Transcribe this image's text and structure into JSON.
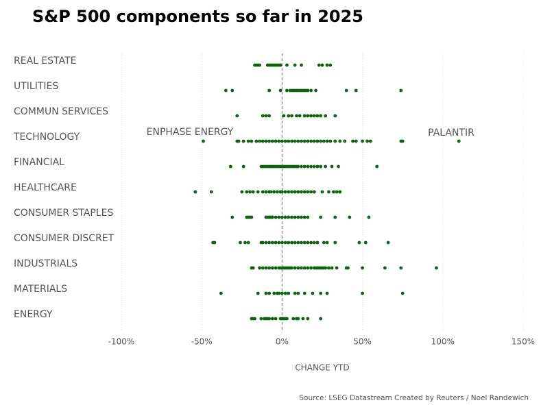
{
  "chart_data": {
    "type": "strip",
    "title": "S&P 500 components so far in 2025",
    "x_label": "CHANGE YTD",
    "source": "Source: LSEG Datastream  Created by Reuters / Noel Randewich",
    "annotations": [
      "ENPHASE ENERGY",
      "PALANTIR"
    ],
    "color": "#0b650b",
    "grid": true,
    "xlim": [
      -100,
      150
    ],
    "xticks": [
      {
        "value": -100,
        "label": "-100%"
      },
      {
        "value": -50,
        "label": "-50%"
      },
      {
        "value": 0,
        "label": "0%"
      },
      {
        "value": 50,
        "label": "50%"
      },
      {
        "value": 100,
        "label": "100%"
      },
      {
        "value": 150,
        "label": "150%"
      }
    ],
    "categories": [
      "REAL ESTATE",
      "UTILITIES",
      "COMMUN SERVICES",
      "TECHNOLOGY",
      "FINANCIAL",
      "HEALTHCARE",
      "CONSUMER STAPLES",
      "CONSUMER DISCRET",
      "INDUSTRIALS",
      "MATERIALS",
      "ENERGY"
    ],
    "values": [
      [
        -17,
        -16,
        -15,
        -14,
        -9,
        -8,
        -7,
        -6,
        -5,
        -4,
        -3,
        -2,
        -1,
        3,
        8,
        12,
        23,
        25,
        28,
        30
      ],
      [
        -35,
        -31,
        -8,
        -1,
        3,
        5,
        6,
        7,
        8,
        9,
        10,
        11,
        12,
        13,
        14,
        15,
        16,
        18,
        21,
        40,
        46,
        74
      ],
      [
        -28,
        -12,
        -10,
        -8,
        1,
        4,
        6,
        9,
        11,
        14,
        16,
        18,
        20,
        22,
        24,
        27,
        33
      ],
      [
        -49,
        -28,
        -27,
        -24,
        -21,
        -19,
        -16,
        -14,
        -12,
        -10,
        -8,
        -6,
        -4,
        -2,
        0,
        2,
        4,
        6,
        8,
        10,
        12,
        14,
        16,
        18,
        20,
        22,
        24,
        26,
        28,
        30,
        33,
        36,
        39,
        44,
        46,
        50,
        53,
        55,
        74,
        75,
        110
      ],
      [
        -32,
        -24,
        -13,
        -12,
        -11,
        -10,
        -9,
        -8,
        -7,
        -6,
        -5,
        -4,
        -3,
        -2,
        -1,
        0,
        1,
        2,
        3,
        4,
        5,
        6,
        7,
        8,
        9,
        10,
        12,
        14,
        16,
        18,
        20,
        22,
        24,
        27,
        31,
        35,
        59
      ],
      [
        -54,
        -44,
        -25,
        -22,
        -20,
        -18,
        -15,
        -12,
        -10,
        -8,
        -7,
        -5,
        -3,
        -1,
        0,
        2,
        4,
        6,
        8,
        10,
        12,
        14,
        16,
        18,
        20,
        25,
        29,
        32,
        34,
        36
      ],
      [
        -31,
        -22,
        -21,
        -20,
        -19,
        -10,
        -9,
        -8,
        -7,
        -6,
        -4,
        -2,
        0,
        2,
        4,
        6,
        8,
        10,
        12,
        14,
        16,
        24,
        33,
        42,
        54
      ],
      [
        -43,
        -42,
        -26,
        -23,
        -21,
        -13,
        -12,
        -10,
        -8,
        -6,
        -4,
        -2,
        0,
        2,
        4,
        6,
        8,
        10,
        12,
        14,
        16,
        18,
        20,
        22,
        26,
        28,
        33,
        48,
        52,
        66
      ],
      [
        -19,
        -18,
        -14,
        -12,
        -10,
        -8,
        -6,
        -4,
        -2,
        -1,
        0,
        1,
        2,
        3,
        4,
        5,
        6,
        8,
        10,
        12,
        14,
        16,
        18,
        20,
        21,
        22,
        23,
        24,
        25,
        26,
        27,
        29,
        31,
        34,
        40,
        41,
        50,
        64,
        74,
        96
      ],
      [
        -38,
        -15,
        -10,
        -8,
        -5,
        -3,
        -2,
        0,
        2,
        4,
        8,
        10,
        14,
        19,
        24,
        28,
        50,
        75
      ],
      [
        -19,
        -18,
        -17,
        -13,
        -11,
        -10,
        -9,
        -8,
        -6,
        -4,
        -1,
        0,
        1,
        2,
        3,
        7,
        9,
        10,
        13,
        16,
        24
      ]
    ]
  }
}
